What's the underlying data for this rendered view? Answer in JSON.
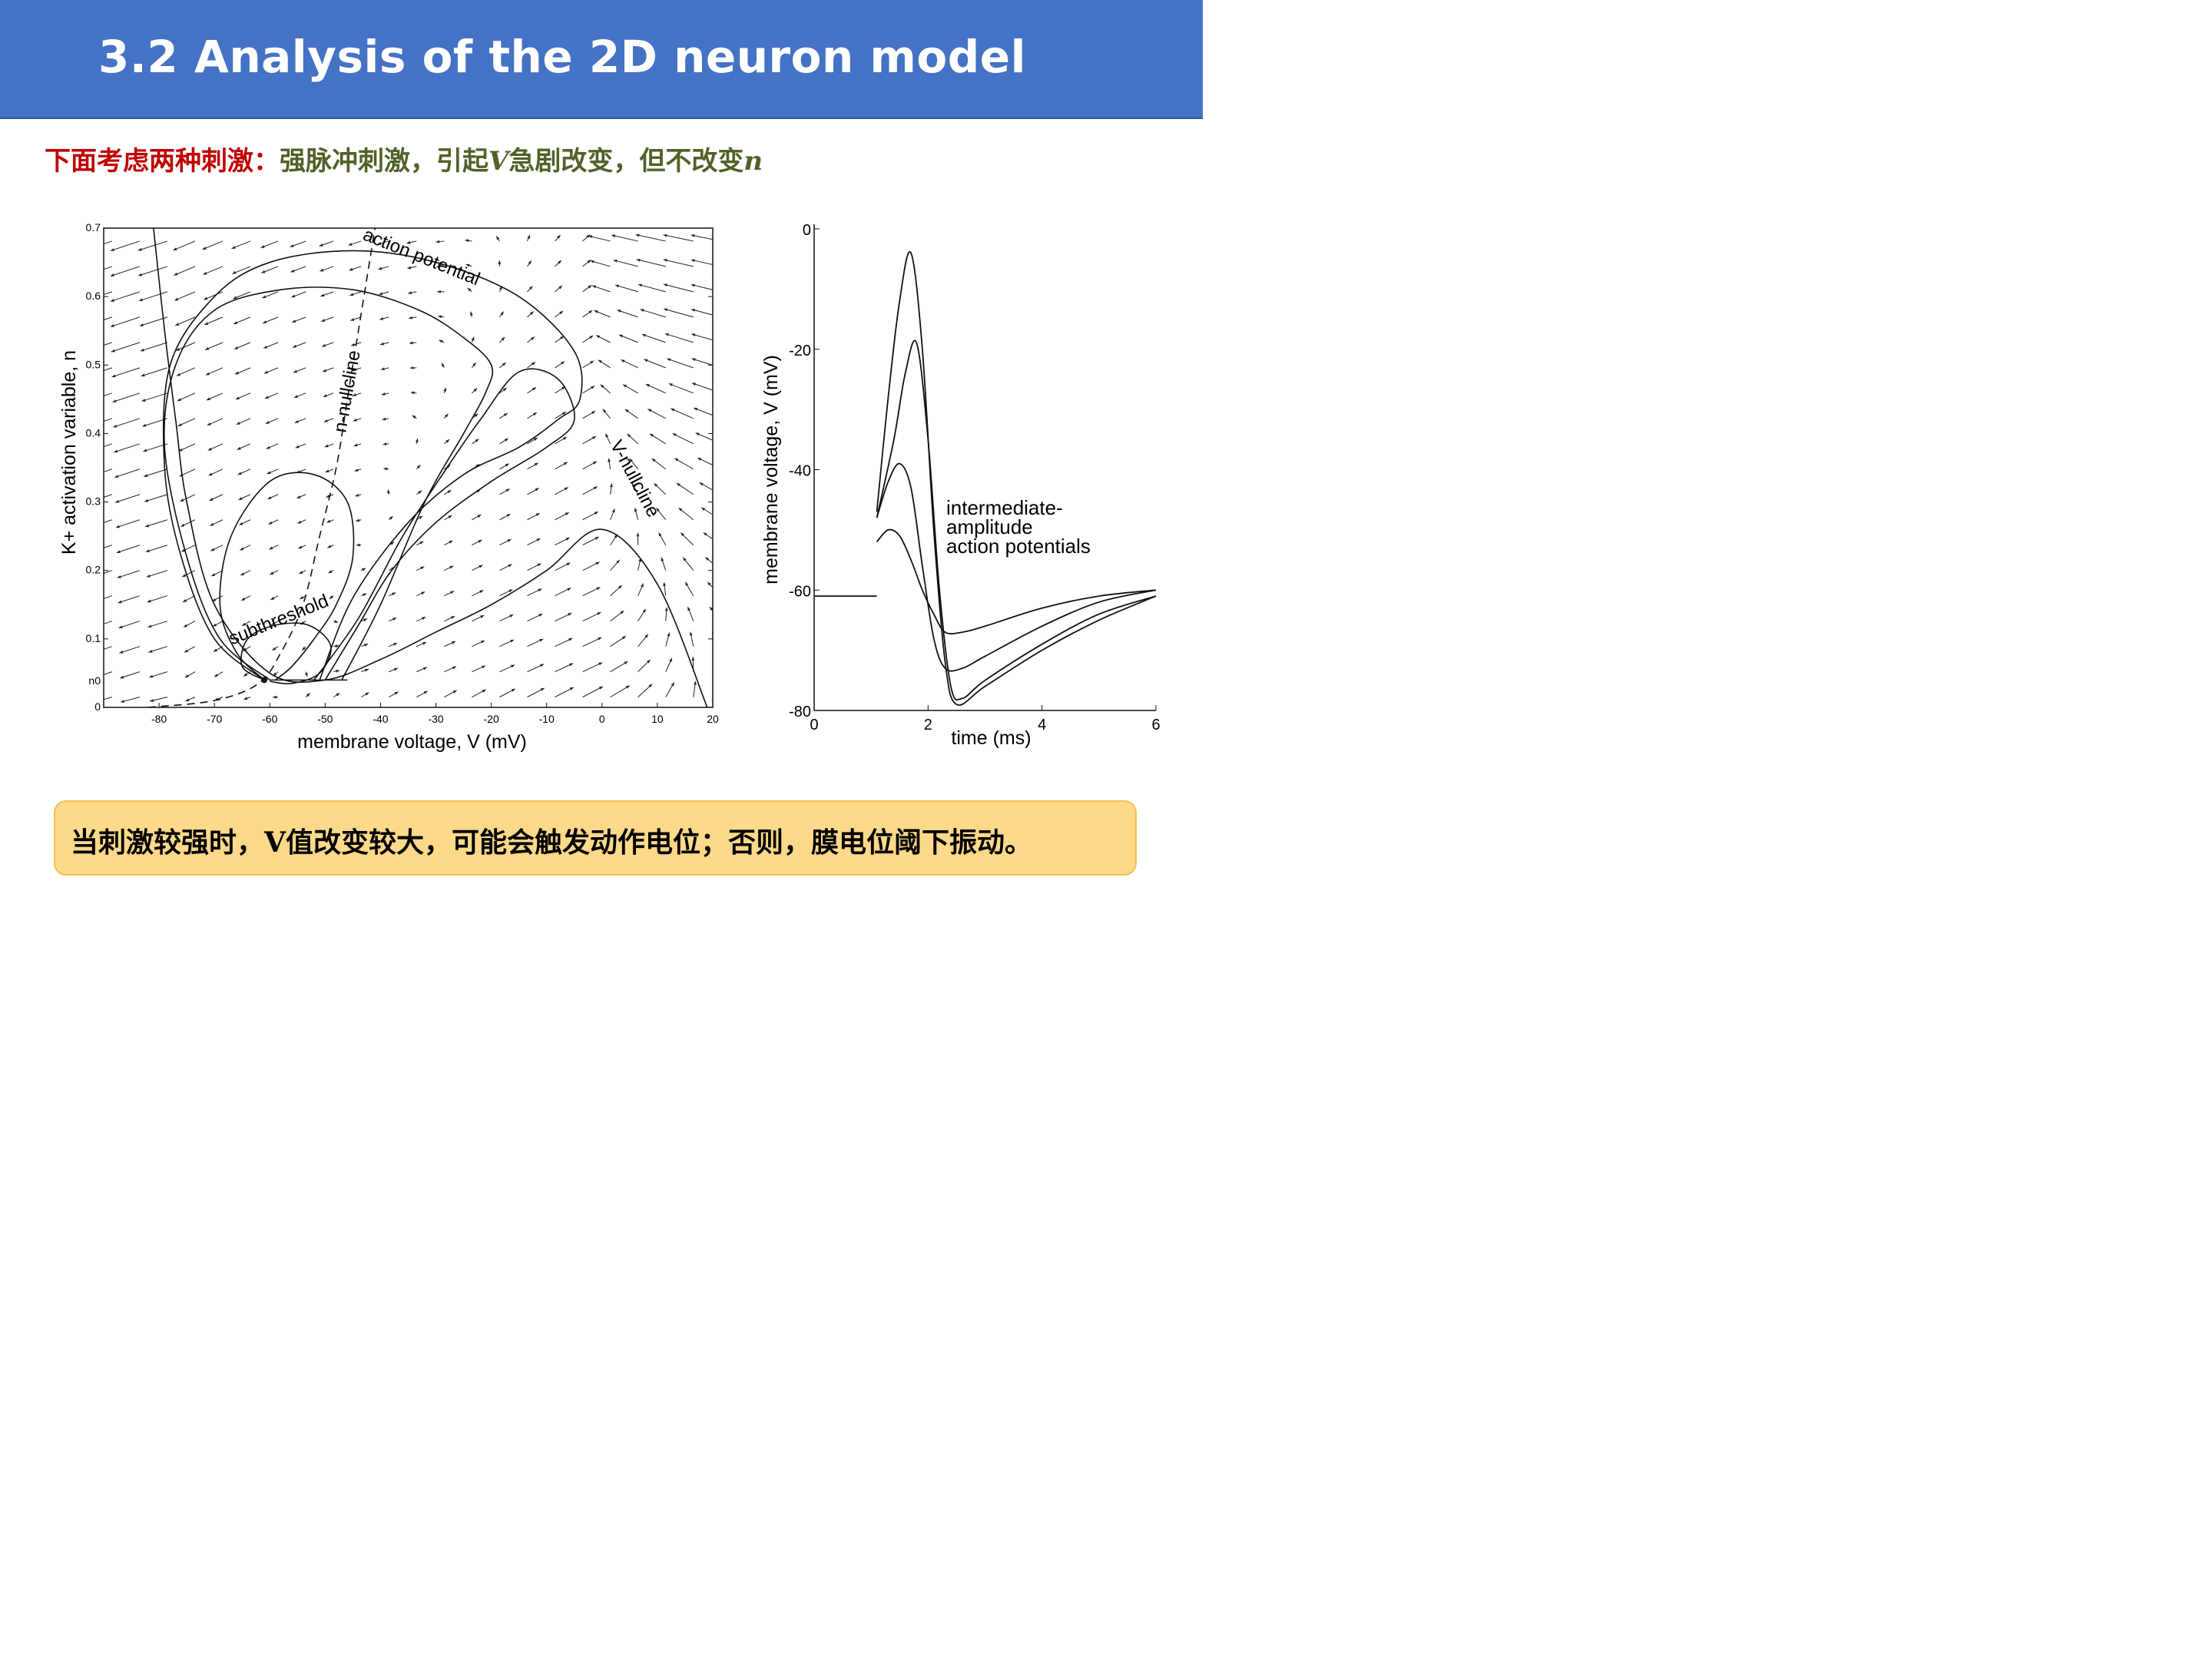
{
  "slide": {
    "title": "3.2 Analysis of the 2D neuron model",
    "subtitle": {
      "lead": "下面考虑两种刺激：",
      "part1": "强脉冲刺激，引起",
      "var_v": "V",
      "part2": "急剧改变，但不改变",
      "var_n": "n"
    },
    "callout": {
      "part1": "当刺激较强时，",
      "var_v": "V",
      "part2": "值改变较大，可能会触发动作电位；否则，膜电位阈下振动。"
    },
    "colors": {
      "title_bg": "#4472c4",
      "lead_text": "#c00000",
      "body_text": "#4f6228",
      "callout_bg": "#fdd98a",
      "callout_border": "#f2c14e"
    }
  },
  "chart_data": [
    {
      "type": "line",
      "subtype": "phase-plane",
      "xlabel": "membrane voltage, V (mV)",
      "ylabel": "K+ activation variable, n",
      "xlim": [
        -90,
        20
      ],
      "ylim": [
        0,
        0.7
      ],
      "xticks": [
        "-80",
        "-70",
        "-60",
        "-50",
        "-40",
        "-30",
        "-20",
        "-10",
        "0",
        "10",
        "20"
      ],
      "yticks": [
        "0",
        "0.1",
        "0.2",
        "0.3",
        "0.4",
        "0.5",
        "0.6",
        "0.7"
      ],
      "extra_ytick": {
        "label": "n0",
        "value": 0.038
      },
      "annotations": [
        {
          "text": "action potential",
          "x": -33,
          "y": 0.65
        },
        {
          "text": "n-nullcline",
          "x": -45,
          "y": 0.46
        },
        {
          "text": "V-nullcline",
          "x": 5,
          "y": 0.33
        },
        {
          "text": "subthreshold",
          "x": -58,
          "y": 0.12
        }
      ],
      "series": [
        {
          "role": "V-nullcline",
          "style": "solid",
          "x": [
            -81,
            -79,
            -77,
            -75,
            -70,
            -60,
            -50,
            -40,
            -30,
            -20,
            -10,
            0,
            10,
            19
          ],
          "y": [
            0.7,
            0.55,
            0.42,
            0.3,
            0.15,
            0.05,
            0.04,
            0.07,
            0.11,
            0.15,
            0.2,
            0.26,
            0.18,
            0.0
          ]
        },
        {
          "role": "n-nullcline",
          "style": "dashed",
          "x": [
            -82,
            -70,
            -62,
            -58,
            -54,
            -51,
            -48,
            -46,
            -45,
            -43,
            -41
          ],
          "y": [
            0.0,
            0.01,
            0.035,
            0.08,
            0.15,
            0.25,
            0.35,
            0.45,
            0.5,
            0.6,
            0.7
          ]
        },
        {
          "role": "action-potential-outer",
          "style": "solid",
          "x": [
            -61,
            -70,
            -76,
            -79,
            -78,
            -70,
            -60,
            -45,
            -30,
            -15,
            -5,
            -4,
            -8,
            -15,
            -25,
            -35,
            -45,
            -51
          ],
          "y": [
            0.04,
            0.1,
            0.22,
            0.35,
            0.5,
            0.6,
            0.65,
            0.667,
            0.65,
            0.6,
            0.52,
            0.45,
            0.42,
            0.38,
            0.34,
            0.27,
            0.16,
            0.04
          ]
        },
        {
          "role": "action-potential-inner",
          "style": "solid",
          "x": [
            -60,
            -69,
            -75,
            -79,
            -77,
            -70,
            -58,
            -45,
            -33,
            -25,
            -20,
            -21,
            -25,
            -32,
            -40,
            -47
          ],
          "y": [
            0.04,
            0.1,
            0.22,
            0.38,
            0.5,
            0.58,
            0.61,
            0.61,
            0.58,
            0.54,
            0.5,
            0.46,
            0.4,
            0.3,
            0.15,
            0.04
          ]
        },
        {
          "role": "intermediate",
          "style": "solid",
          "x": [
            -52,
            -44,
            -36,
            -28,
            -22,
            -15,
            -8,
            -5,
            -10,
            -20,
            -30,
            -38,
            -44,
            -50
          ],
          "y": [
            0.04,
            0.13,
            0.25,
            0.35,
            0.42,
            0.49,
            0.48,
            0.42,
            0.38,
            0.33,
            0.27,
            0.2,
            0.12,
            0.04
          ]
        },
        {
          "role": "small-loop",
          "style": "solid",
          "x": [
            -61,
            -66,
            -69,
            -67,
            -60,
            -52,
            -46,
            -45,
            -48,
            -52,
            -56,
            -59
          ],
          "y": [
            0.04,
            0.08,
            0.15,
            0.25,
            0.33,
            0.34,
            0.3,
            0.22,
            0.15,
            0.1,
            0.06,
            0.04
          ]
        },
        {
          "role": "subthreshold",
          "style": "solid",
          "x": [
            -61,
            -65,
            -64,
            -59,
            -53,
            -49,
            -51,
            -56,
            -60
          ],
          "y": [
            0.04,
            0.06,
            0.1,
            0.12,
            0.12,
            0.09,
            0.05,
            0.035,
            0.038
          ]
        }
      ]
    },
    {
      "type": "line",
      "xlabel": "time (ms)",
      "ylabel": "membrane voltage, V (mV)",
      "xlim": [
        0,
        6
      ],
      "ylim": [
        -80,
        0
      ],
      "xticks": [
        "0",
        "2",
        "4",
        "6"
      ],
      "yticks": [
        "0",
        "-20",
        "-40",
        "-60",
        "-80"
      ],
      "annotation": [
        "intermediate-",
        "amplitude",
        "action potentials"
      ],
      "series": [
        {
          "role": "resting",
          "x": [
            0,
            1.1
          ],
          "y": [
            -61,
            -61
          ]
        },
        {
          "role": "trace-1",
          "x": [
            1.1,
            1.3,
            1.5,
            1.7,
            1.9,
            2.1,
            2.3,
            2.5,
            3,
            4,
            5,
            6
          ],
          "y": [
            -47,
            -28,
            -12,
            -4,
            -20,
            -50,
            -72,
            -79,
            -76,
            -70,
            -65,
            -61
          ]
        },
        {
          "role": "trace-2",
          "x": [
            1.1,
            1.4,
            1.6,
            1.8,
            2.0,
            2.2,
            2.4,
            2.6,
            3,
            4,
            5,
            6
          ],
          "y": [
            -48,
            -35,
            -24,
            -19,
            -35,
            -60,
            -76,
            -78,
            -75,
            -69,
            -64,
            -61
          ]
        },
        {
          "role": "trace-3",
          "x": [
            1.1,
            1.3,
            1.5,
            1.7,
            1.9,
            2.1,
            2.3,
            2.6,
            3,
            4,
            5,
            6
          ],
          "y": [
            -48,
            -42,
            -39,
            -43,
            -56,
            -68,
            -73,
            -73,
            -71,
            -66,
            -62,
            -60
          ]
        },
        {
          "role": "trace-4",
          "x": [
            1.1,
            1.3,
            1.5,
            1.7,
            1.9,
            2.1,
            2.3,
            2.6,
            3,
            4,
            5,
            6
          ],
          "y": [
            -52,
            -50,
            -51,
            -55,
            -60,
            -64,
            -67,
            -67,
            -66,
            -63,
            -61,
            -60
          ]
        }
      ]
    }
  ]
}
